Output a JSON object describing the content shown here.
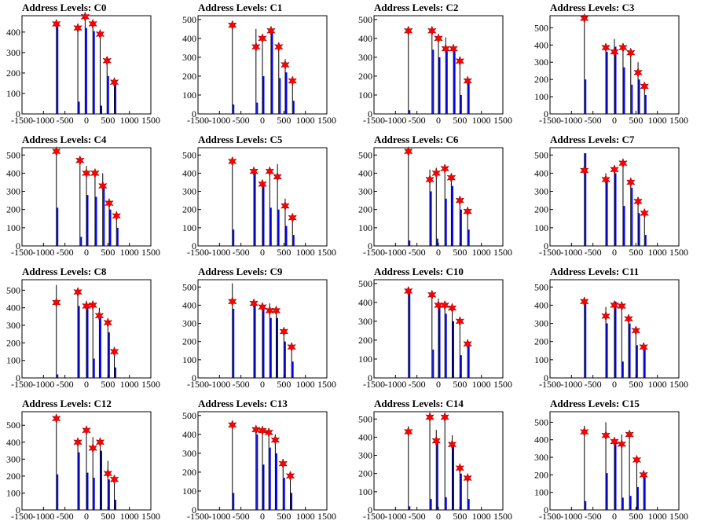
{
  "colors": {
    "bar_black": "#000000",
    "bar_blue": "#0000ff",
    "marker": "#ff0000",
    "frame": "#000000"
  },
  "marker_icon": "star-marker-icon",
  "chart_data": [
    {
      "type": "bar",
      "title": "Address Levels: C0",
      "x": [
        -700,
        -200,
        -30,
        150,
        320,
        480,
        650
      ],
      "xlim": [
        -1500,
        1500
      ],
      "ylim": [
        0,
        480
      ],
      "yticks": [
        0,
        100,
        200,
        300,
        400
      ],
      "xticks": [
        -1500,
        -1000,
        -500,
        0,
        500,
        1000,
        1500
      ],
      "series": [
        {
          "values": [
            440,
            420,
            475,
            440,
            390,
            260,
            155
          ]
        },
        {
          "values": [
            430,
            60,
            420,
            405,
            40,
            185,
            150
          ]
        },
        {
          "values": [
            440,
            420,
            475,
            440,
            390,
            260,
            155
          ]
        }
      ]
    },
    {
      "type": "bar",
      "title": "Address Levels: C1",
      "x": [
        -700,
        -150,
        0,
        200,
        380,
        530,
        700
      ],
      "xlim": [
        -1500,
        1500
      ],
      "ylim": [
        0,
        520
      ],
      "yticks": [
        0,
        100,
        200,
        300,
        400,
        500
      ],
      "xticks": [
        -1500,
        -1000,
        -500,
        0,
        500,
        1000,
        1500
      ],
      "series": [
        {
          "values": [
            470,
            450,
            400,
            445,
            355,
            290,
            175
          ]
        },
        {
          "values": [
            50,
            60,
            200,
            440,
            190,
            220,
            70
          ]
        },
        {
          "values": [
            470,
            355,
            400,
            440,
            355,
            260,
            175
          ]
        }
      ]
    },
    {
      "type": "bar",
      "title": "Address Levels: C2",
      "x": [
        -700,
        -150,
        0,
        170,
        350,
        500,
        680
      ],
      "xlim": [
        -1500,
        1500
      ],
      "ylim": [
        0,
        520
      ],
      "yticks": [
        0,
        100,
        200,
        300,
        400,
        500
      ],
      "xticks": [
        -1500,
        -1000,
        -500,
        0,
        500,
        1000,
        1500
      ],
      "series": [
        {
          "values": [
            420,
            440,
            390,
            405,
            360,
            300,
            175
          ]
        },
        {
          "values": [
            20,
            340,
            300,
            340,
            340,
            100,
            175
          ]
        },
        {
          "values": [
            440,
            440,
            400,
            345,
            345,
            280,
            175
          ]
        }
      ]
    },
    {
      "type": "bar",
      "title": "Address Levels: C3",
      "x": [
        -700,
        -200,
        0,
        200,
        380,
        550,
        700
      ],
      "xlim": [
        -1500,
        1500
      ],
      "ylim": [
        0,
        570
      ],
      "yticks": [
        0,
        100,
        200,
        300,
        400,
        500
      ],
      "xticks": [
        -1500,
        -1000,
        -500,
        0,
        500,
        1000,
        1500
      ],
      "series": [
        {
          "values": [
            560,
            400,
            435,
            410,
            380,
            300,
            180
          ]
        },
        {
          "values": [
            200,
            360,
            390,
            270,
            170,
            200,
            110
          ]
        },
        {
          "values": [
            555,
            385,
            360,
            385,
            355,
            240,
            160
          ]
        }
      ]
    },
    {
      "type": "bar",
      "title": "Address Levels: C4",
      "x": [
        -700,
        -150,
        0,
        200,
        380,
        530,
        700
      ],
      "xlim": [
        -1500,
        1500
      ],
      "ylim": [
        0,
        540
      ],
      "yticks": [
        0,
        100,
        200,
        300,
        400,
        500
      ],
      "xticks": [
        -1500,
        -1000,
        -500,
        0,
        500,
        1000,
        1500
      ],
      "series": [
        {
          "values": [
            530,
            470,
            440,
            410,
            400,
            250,
            165
          ]
        },
        {
          "values": [
            210,
            50,
            280,
            270,
            320,
            200,
            100
          ]
        },
        {
          "values": [
            520,
            470,
            400,
            400,
            330,
            235,
            165
          ]
        }
      ]
    },
    {
      "type": "bar",
      "title": "Address Levels: C5",
      "x": [
        -700,
        -200,
        0,
        170,
        350,
        530,
        700
      ],
      "xlim": [
        -1500,
        1500
      ],
      "ylim": [
        0,
        540
      ],
      "yticks": [
        0,
        100,
        200,
        300,
        400,
        500
      ],
      "xticks": [
        -1500,
        -1000,
        -500,
        0,
        500,
        1000,
        1500
      ],
      "series": [
        {
          "values": [
            480,
            430,
            360,
            435,
            450,
            260,
            175
          ]
        },
        {
          "values": [
            90,
            400,
            330,
            210,
            200,
            110,
            60
          ]
        },
        {
          "values": [
            465,
            410,
            340,
            410,
            380,
            220,
            155
          ]
        }
      ]
    },
    {
      "type": "bar",
      "title": "Address Levels: C6",
      "x": [
        -700,
        -200,
        -50,
        150,
        300,
        500,
        680
      ],
      "xlim": [
        -1500,
        1500
      ],
      "ylim": [
        0,
        540
      ],
      "yticks": [
        0,
        100,
        200,
        300,
        400,
        500
      ],
      "xticks": [
        -1500,
        -1000,
        -500,
        0,
        500,
        1000,
        1500
      ],
      "series": [
        {
          "values": [
            530,
            420,
            430,
            440,
            390,
            255,
            195
          ]
        },
        {
          "values": [
            30,
            300,
            40,
            260,
            330,
            200,
            90
          ]
        },
        {
          "values": [
            520,
            365,
            400,
            425,
            375,
            250,
            190
          ]
        }
      ]
    },
    {
      "type": "bar",
      "title": "Address Levels: C7",
      "x": [
        -700,
        -200,
        0,
        200,
        380,
        550,
        700
      ],
      "xlim": [
        -1500,
        1500
      ],
      "ylim": [
        0,
        540
      ],
      "yticks": [
        0,
        100,
        200,
        300,
        400,
        500
      ],
      "xticks": [
        -1500,
        -1000,
        -500,
        0,
        500,
        1000,
        1500
      ],
      "series": [
        {
          "values": [
            510,
            400,
            430,
            470,
            370,
            260,
            190
          ]
        },
        {
          "values": [
            510,
            360,
            400,
            220,
            320,
            180,
            60
          ]
        },
        {
          "values": [
            415,
            365,
            420,
            455,
            350,
            245,
            180
          ]
        }
      ]
    },
    {
      "type": "bar",
      "title": "Address Levels: C8",
      "x": [
        -700,
        -200,
        0,
        150,
        300,
        500,
        650
      ],
      "xlim": [
        -1500,
        1500
      ],
      "ylim": [
        0,
        560
      ],
      "yticks": [
        0,
        100,
        200,
        300,
        400,
        500
      ],
      "xticks": [
        -1500,
        -1000,
        -500,
        0,
        500,
        1000,
        1500
      ],
      "series": [
        {
          "values": [
            530,
            480,
            440,
            420,
            400,
            320,
            165
          ]
        },
        {
          "values": [
            20,
            410,
            420,
            110,
            350,
            260,
            60
          ]
        },
        {
          "values": [
            430,
            490,
            410,
            415,
            355,
            315,
            150
          ]
        }
      ]
    },
    {
      "type": "bar",
      "title": "Address Levels: C9",
      "x": [
        -700,
        -200,
        0,
        170,
        320,
        500,
        680
      ],
      "xlim": [
        -1500,
        1500
      ],
      "ylim": [
        0,
        540
      ],
      "yticks": [
        0,
        100,
        200,
        300,
        400,
        500
      ],
      "xticks": [
        -1500,
        -1000,
        -500,
        0,
        500,
        1000,
        1500
      ],
      "series": [
        {
          "values": [
            520,
            420,
            400,
            410,
            380,
            270,
            175
          ]
        },
        {
          "values": [
            380,
            400,
            380,
            330,
            330,
            200,
            90
          ]
        },
        {
          "values": [
            420,
            410,
            390,
            370,
            370,
            255,
            170
          ]
        }
      ]
    },
    {
      "type": "bar",
      "title": "Address Levels: C10",
      "x": [
        -700,
        -150,
        0,
        150,
        320,
        500,
        680
      ],
      "xlim": [
        -1500,
        1500
      ],
      "ylim": [
        0,
        520
      ],
      "yticks": [
        0,
        100,
        200,
        300,
        400,
        500
      ],
      "xticks": [
        -1500,
        -1000,
        -500,
        0,
        500,
        1000,
        1500
      ],
      "series": [
        {
          "values": [
            470,
            450,
            420,
            400,
            380,
            310,
            190
          ]
        },
        {
          "values": [
            450,
            150,
            390,
            340,
            300,
            120,
            175
          ]
        },
        {
          "values": [
            460,
            440,
            385,
            385,
            370,
            300,
            180
          ]
        }
      ]
    },
    {
      "type": "bar",
      "title": "Address Levels: C11",
      "x": [
        -700,
        -200,
        0,
        170,
        330,
        500,
        680
      ],
      "xlim": [
        -1500,
        1500
      ],
      "ylim": [
        0,
        540
      ],
      "yticks": [
        0,
        100,
        200,
        300,
        400,
        500
      ],
      "xticks": [
        -1500,
        -1000,
        -500,
        0,
        500,
        1000,
        1500
      ],
      "series": [
        {
          "values": [
            440,
            390,
            410,
            420,
            350,
            270,
            175
          ]
        },
        {
          "values": [
            420,
            300,
            420,
            90,
            300,
            180,
            175
          ]
        },
        {
          "values": [
            420,
            340,
            400,
            395,
            325,
            260,
            170
          ]
        }
      ]
    },
    {
      "type": "bar",
      "title": "Address Levels: C12",
      "x": [
        -700,
        -200,
        0,
        150,
        320,
        500,
        650
      ],
      "xlim": [
        -1500,
        1500
      ],
      "ylim": [
        0,
        580
      ],
      "yticks": [
        0,
        100,
        200,
        300,
        400,
        500
      ],
      "xticks": [
        -1500,
        -1000,
        -500,
        0,
        500,
        1000,
        1500
      ],
      "series": [
        {
          "values": [
            550,
            410,
            480,
            430,
            410,
            290,
            190
          ]
        },
        {
          "values": [
            210,
            340,
            220,
            190,
            350,
            180,
            60
          ]
        },
        {
          "values": [
            540,
            400,
            470,
            365,
            400,
            215,
            180
          ]
        }
      ]
    },
    {
      "type": "bar",
      "title": "Address Levels: C13",
      "x": [
        -700,
        -150,
        0,
        150,
        300,
        480,
        650
      ],
      "xlim": [
        -1500,
        1500
      ],
      "ylim": [
        0,
        520
      ],
      "yticks": [
        0,
        100,
        200,
        300,
        400,
        500
      ],
      "xticks": [
        -1500,
        -1000,
        -500,
        0,
        500,
        1000,
        1500
      ],
      "series": [
        {
          "values": [
            470,
            430,
            430,
            425,
            400,
            270,
            190
          ]
        },
        {
          "values": [
            90,
            400,
            240,
            330,
            300,
            170,
            90
          ]
        },
        {
          "values": [
            450,
            425,
            420,
            410,
            370,
            245,
            180
          ]
        }
      ]
    },
    {
      "type": "bar",
      "title": "Address Levels: C14",
      "x": [
        -700,
        -200,
        -50,
        150,
        320,
        500,
        680
      ],
      "xlim": [
        -1500,
        1500
      ],
      "ylim": [
        0,
        540
      ],
      "yticks": [
        0,
        100,
        200,
        300,
        400,
        500
      ],
      "xticks": [
        -1500,
        -1000,
        -500,
        0,
        500,
        1000,
        1500
      ],
      "series": [
        {
          "values": [
            460,
            520,
            440,
            530,
            410,
            250,
            190
          ]
        },
        {
          "values": [
            20,
            60,
            370,
            70,
            350,
            200,
            60
          ]
        },
        {
          "values": [
            430,
            510,
            380,
            510,
            360,
            230,
            175
          ]
        }
      ]
    },
    {
      "type": "bar",
      "title": "Address Levels: C15",
      "x": [
        -700,
        -200,
        0,
        170,
        350,
        520,
        680
      ],
      "xlim": [
        -1500,
        1500
      ],
      "ylim": [
        0,
        560
      ],
      "yticks": [
        0,
        100,
        200,
        300,
        400,
        500
      ],
      "xticks": [
        -1500,
        -1000,
        -500,
        0,
        500,
        1000,
        1500
      ],
      "series": [
        {
          "values": [
            480,
            500,
            410,
            430,
            430,
            300,
            210
          ]
        },
        {
          "values": [
            50,
            210,
            380,
            70,
            80,
            130,
            190
          ]
        },
        {
          "values": [
            445,
            425,
            390,
            375,
            430,
            285,
            200
          ]
        }
      ]
    }
  ]
}
